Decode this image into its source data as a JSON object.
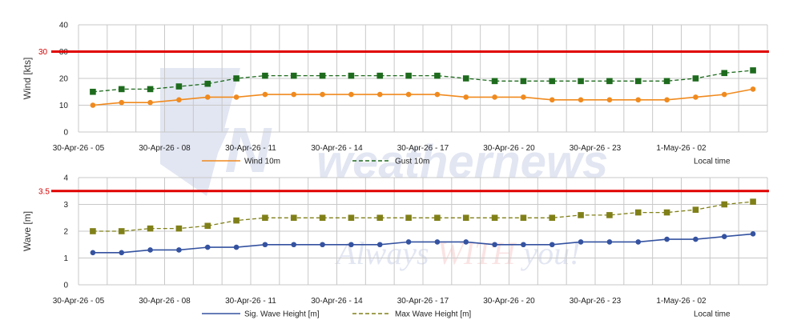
{
  "watermark": {
    "brand": "weathernews",
    "tagline_a": "Always ",
    "tagline_b": "WITH",
    "tagline_c": " you!",
    "logo_letters": "WN"
  },
  "colors": {
    "wind": "#f08a1e",
    "gust": "#1e6b1e",
    "sig_wave": "#3452a0",
    "max_wave": "#808019",
    "threshold": "#e00000",
    "grid": "#c8c8c8"
  },
  "chart_data": [
    {
      "type": "line",
      "title": "",
      "ylabel": "Wind [kts]",
      "ylim": [
        0,
        40
      ],
      "yticks": [
        0,
        10,
        20,
        30,
        40
      ],
      "x_tick_labels": [
        "30-Apr-26 - 05",
        "30-Apr-26 - 08",
        "30-Apr-26 - 11",
        "30-Apr-26 - 14",
        "30-Apr-26 - 17",
        "30-Apr-26 - 20",
        "30-Apr-26 - 23",
        "1-May-26 - 02"
      ],
      "threshold": {
        "value": 30,
        "label": "30"
      },
      "grid": true,
      "legend_position": "bottom",
      "legend_note": "Local time",
      "series": [
        {
          "name": "Wind 10m",
          "style": "solid-circle",
          "values": [
            10,
            11,
            11,
            12,
            13,
            13,
            14,
            14,
            14,
            14,
            14,
            14,
            14,
            13,
            13,
            13,
            12,
            12,
            12,
            12,
            12,
            13,
            14,
            16
          ]
        },
        {
          "name": "Gust 10m",
          "style": "dashed-square",
          "values": [
            15,
            16,
            16,
            17,
            18,
            20,
            21,
            21,
            21,
            21,
            21,
            21,
            21,
            20,
            19,
            19,
            19,
            19,
            19,
            19,
            19,
            20,
            22,
            23
          ]
        }
      ]
    },
    {
      "type": "line",
      "title": "",
      "ylabel": "Wave [m]",
      "ylim": [
        0,
        4
      ],
      "yticks": [
        0,
        1,
        2,
        3,
        4
      ],
      "x_tick_labels": [
        "30-Apr-26 - 05",
        "30-Apr-26 - 08",
        "30-Apr-26 - 11",
        "30-Apr-26 - 14",
        "30-Apr-26 - 17",
        "30-Apr-26 - 20",
        "30-Apr-26 - 23",
        "1-May-26 - 02"
      ],
      "threshold": {
        "value": 3.5,
        "label": "3.5"
      },
      "grid": true,
      "legend_position": "bottom",
      "legend_note": "Local time",
      "series": [
        {
          "name": "Sig. Wave Height [m]",
          "style": "solid-circle",
          "values": [
            1.2,
            1.2,
            1.3,
            1.3,
            1.4,
            1.4,
            1.5,
            1.5,
            1.5,
            1.5,
            1.5,
            1.6,
            1.6,
            1.6,
            1.5,
            1.5,
            1.5,
            1.6,
            1.6,
            1.6,
            1.7,
            1.7,
            1.8,
            1.9
          ]
        },
        {
          "name": "Max Wave Height [m]",
          "style": "dashed-square",
          "values": [
            2.0,
            2.0,
            2.1,
            2.1,
            2.2,
            2.4,
            2.5,
            2.5,
            2.5,
            2.5,
            2.5,
            2.5,
            2.5,
            2.5,
            2.5,
            2.5,
            2.5,
            2.6,
            2.6,
            2.7,
            2.7,
            2.8,
            3.0,
            3.1
          ]
        }
      ]
    }
  ]
}
